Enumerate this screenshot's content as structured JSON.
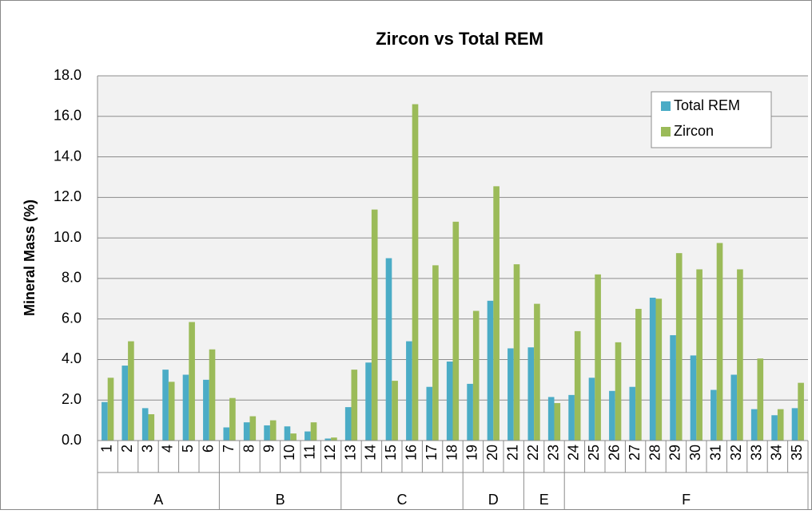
{
  "chart_data": {
    "type": "bar",
    "title": "Zircon vs Total REM",
    "y_label": "Mineral Mass (%)",
    "groups": [
      {
        "name": "A",
        "categories": [
          "1",
          "2",
          "3",
          "4",
          "5",
          "6"
        ]
      },
      {
        "name": "B",
        "categories": [
          "7",
          "8",
          "9",
          "10",
          "11",
          "12"
        ]
      },
      {
        "name": "C",
        "categories": [
          "13",
          "14",
          "15",
          "16",
          "17",
          "18"
        ]
      },
      {
        "name": "D",
        "categories": [
          "19",
          "20",
          "21"
        ]
      },
      {
        "name": "E",
        "categories": [
          "22",
          "23"
        ]
      },
      {
        "name": "F",
        "categories": [
          "24",
          "25",
          "26",
          "27",
          "28",
          "29",
          "30",
          "31",
          "32",
          "33",
          "34",
          "35"
        ]
      }
    ],
    "series": [
      {
        "name": "Total REM",
        "color": "#4bacc6",
        "values": [
          1.9,
          3.7,
          1.6,
          3.5,
          3.25,
          3.0,
          0.65,
          0.9,
          0.75,
          0.7,
          0.45,
          0.1,
          1.65,
          3.85,
          9.0,
          4.9,
          2.65,
          3.9,
          2.8,
          6.9,
          4.55,
          4.6,
          2.15,
          2.25,
          3.1,
          2.45,
          2.65,
          7.05,
          5.2,
          4.2,
          2.5,
          3.25,
          1.55,
          1.25,
          1.6
        ]
      },
      {
        "name": "Zircon",
        "color": "#9bbb59",
        "values": [
          3.1,
          4.9,
          1.3,
          2.9,
          5.85,
          4.5,
          2.1,
          1.2,
          1.0,
          0.35,
          0.9,
          0.15,
          3.5,
          11.4,
          2.95,
          16.6,
          8.65,
          10.8,
          6.4,
          12.55,
          8.7,
          6.75,
          1.85,
          5.4,
          8.2,
          4.85,
          6.5,
          7.0,
          9.25,
          8.45,
          9.75,
          8.45,
          4.05,
          1.55,
          2.85
        ]
      }
    ],
    "ylim": [
      0,
      18
    ],
    "yticks": [
      {
        "value": 0,
        "label": "0.0"
      },
      {
        "value": 2,
        "label": "2.0"
      },
      {
        "value": 4,
        "label": "4.0"
      },
      {
        "value": 6,
        "label": "6.0"
      },
      {
        "value": 8,
        "label": "8.0"
      },
      {
        "value": 10,
        "label": "10.0"
      },
      {
        "value": 12,
        "label": "12.0"
      },
      {
        "value": 14,
        "label": "14.0"
      },
      {
        "value": 16,
        "label": "16.0"
      },
      {
        "value": 18,
        "label": "18.0"
      }
    ],
    "grid": true,
    "legend": "upper right"
  }
}
